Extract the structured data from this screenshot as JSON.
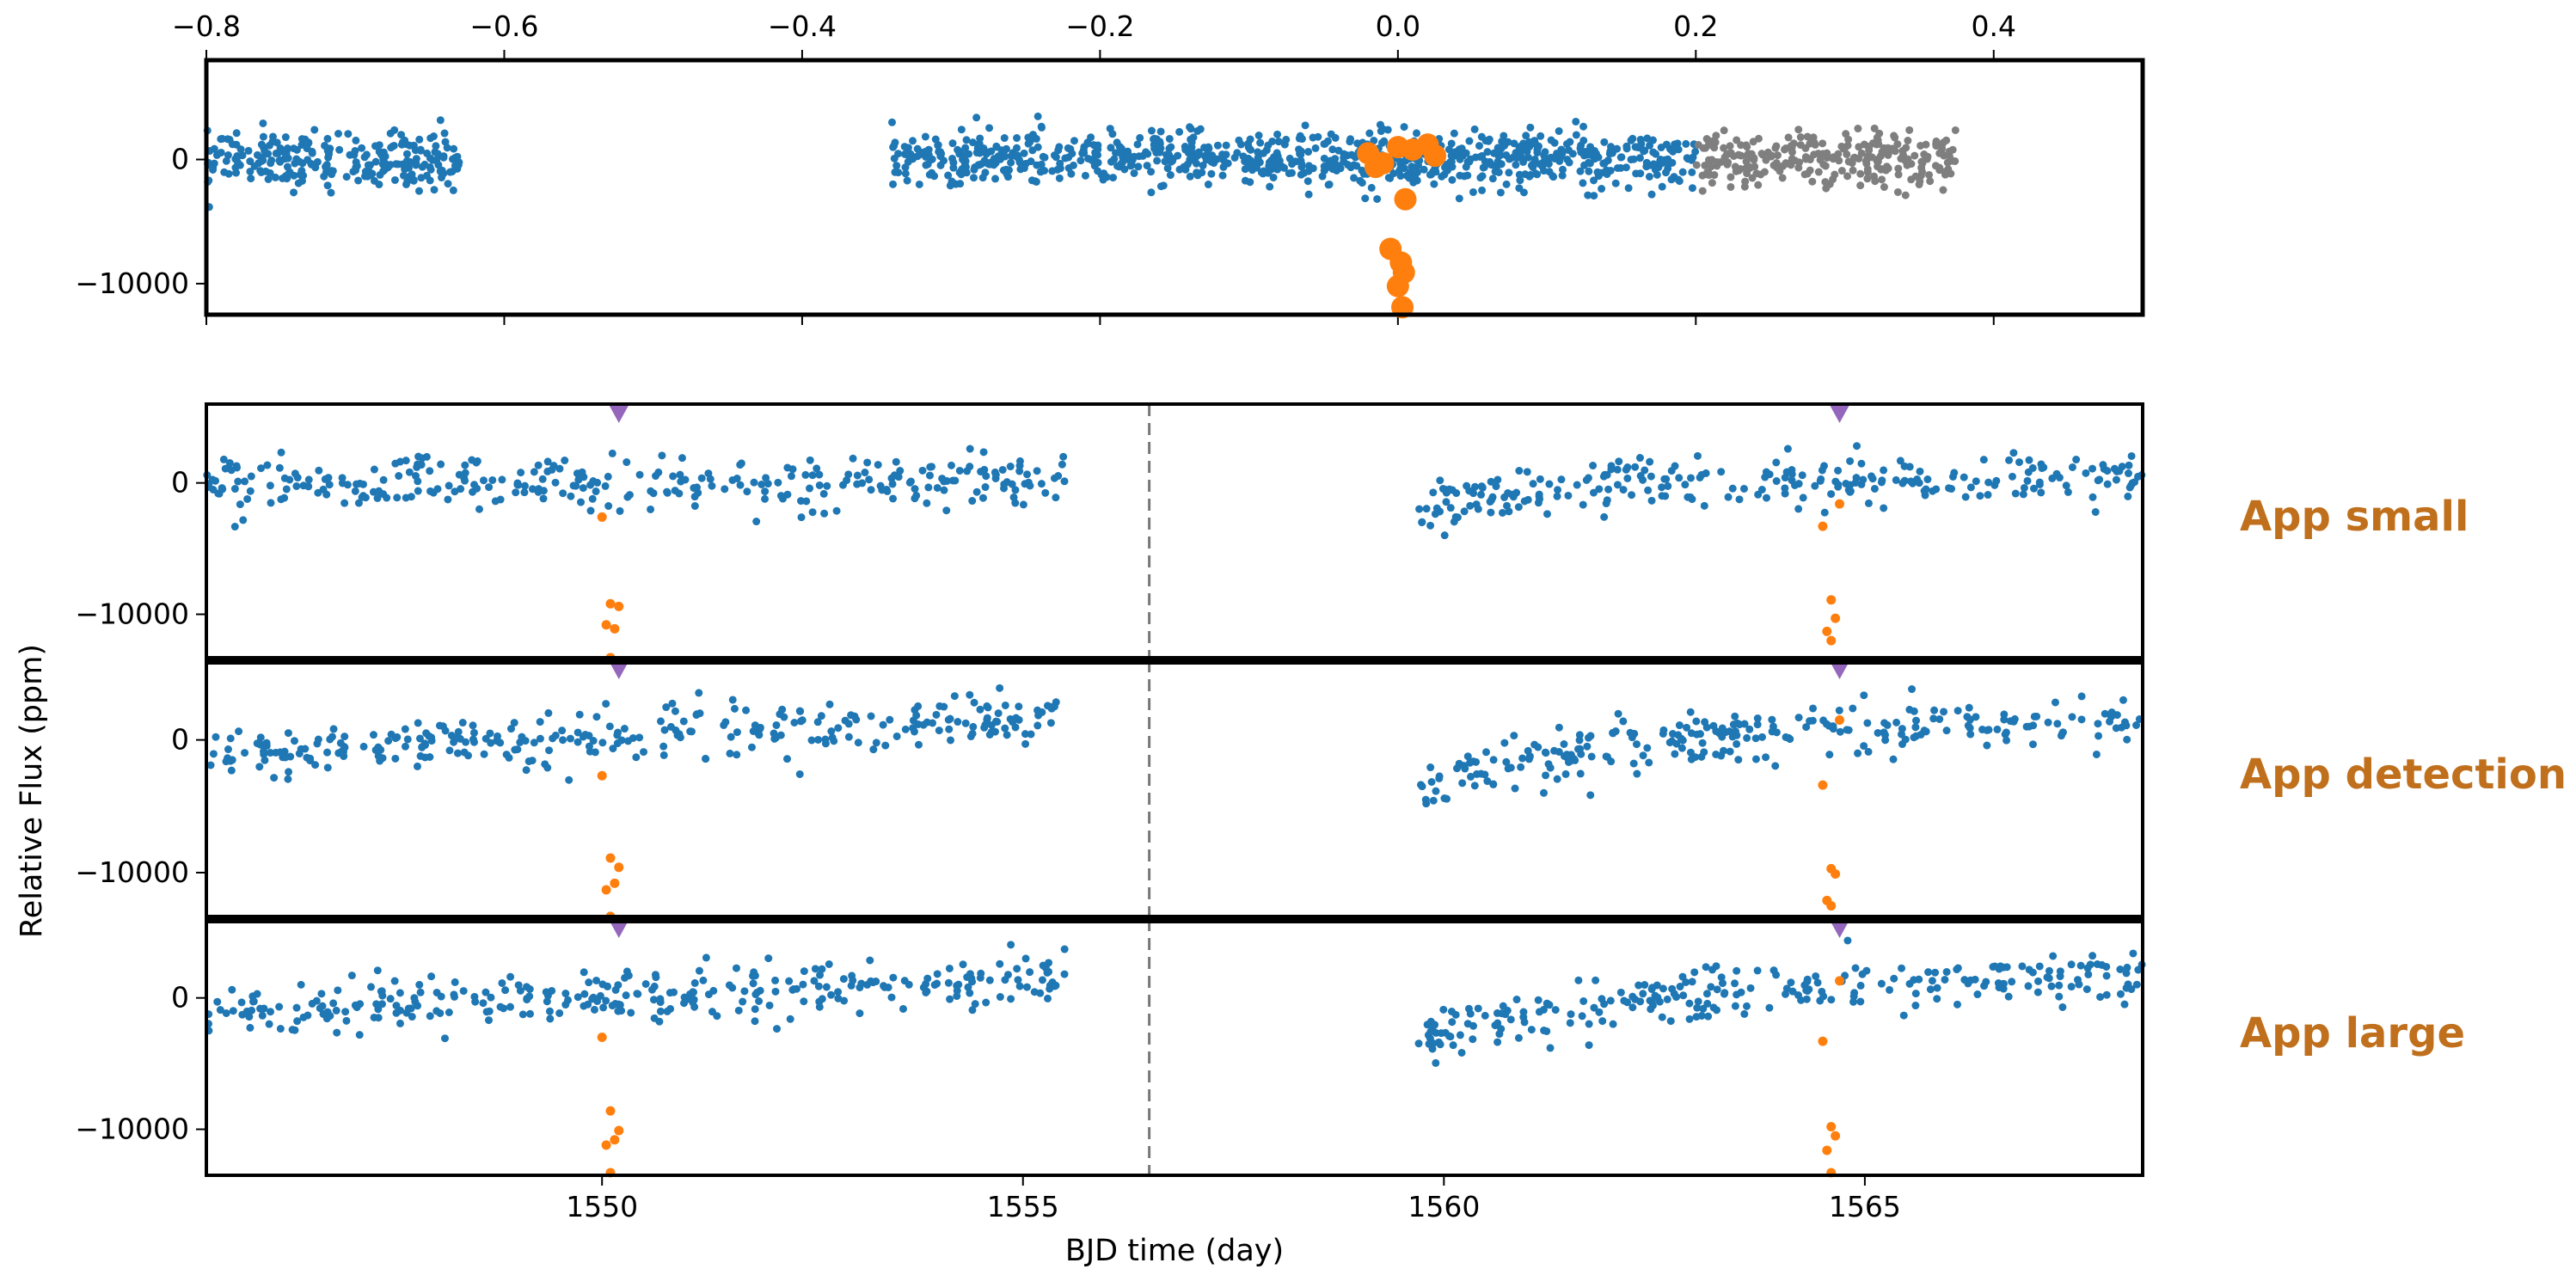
{
  "chart_data": [
    {
      "type": "scatter",
      "panel": "phase-folded",
      "title": "",
      "xlabel": "",
      "ylabel": "",
      "xlim": [
        -0.8,
        0.5
      ],
      "ylim": [
        -12500,
        8000
      ],
      "x_ticks": [
        -0.8,
        -0.6,
        -0.4,
        -0.2,
        0.0,
        0.2,
        0.4
      ],
      "x_tick_labels": [
        "−0.8",
        "−0.6",
        "−0.4",
        "−0.2",
        "0.0",
        "0.2",
        "0.4"
      ],
      "x_ticks_position": "top",
      "y_ticks": [
        0,
        -10000
      ],
      "y_tick_labels": [
        "0",
        "−10000"
      ],
      "series": [
        {
          "color": "#1f77b4",
          "marker": "small dot",
          "x_ranges": [
            [
              -0.8,
              -0.63
            ],
            [
              -0.34,
              0.2
            ]
          ],
          "y_center": 0,
          "y_spread": 1500
        },
        {
          "color": "#7f7f7f",
          "marker": "small dot",
          "x_ranges": [
            [
              0.2,
              0.375
            ]
          ],
          "y_center": 0,
          "y_spread": 1500
        },
        {
          "color": "#ff7f0e",
          "marker": "large dot",
          "points": [
            [
              -0.02,
              500
            ],
            [
              -0.01,
              -300
            ],
            [
              0.0,
              1000
            ],
            [
              0.01,
              800
            ],
            [
              0.02,
              1200
            ],
            [
              0.025,
              300
            ],
            [
              -0.015,
              -600
            ],
            [
              0.005,
              -3200
            ],
            [
              -0.005,
              -7200
            ],
            [
              0.002,
              -8300
            ],
            [
              0.004,
              -9100
            ],
            [
              0.0,
              -10200
            ],
            [
              0.003,
              -11900
            ]
          ]
        }
      ]
    },
    {
      "type": "scatter",
      "panel": "App small",
      "title": "",
      "xlim": [
        1545.3,
        1568.3
      ],
      "ylim": [
        -13500,
        6000
      ],
      "y_ticks": [
        0,
        -10000
      ],
      "y_tick_labels": [
        "0",
        "−10000"
      ],
      "transit_markers_x": [
        1550.2,
        1564.7
      ],
      "gap_line_x": 1556.5,
      "series": [
        {
          "color": "#1f77b4",
          "x_ranges": [
            [
              1545.3,
              1555.5
            ],
            [
              1559.7,
              1568.3
            ]
          ],
          "y_center": 0,
          "trend": "flat"
        },
        {
          "color": "#ff7f0e",
          "points": [
            [
              1550.0,
              -2600
            ],
            [
              1550.1,
              -9200
            ],
            [
              1550.2,
              -9400
            ],
            [
              1550.05,
              -10800
            ],
            [
              1550.15,
              -11100
            ],
            [
              1550.1,
              -13300
            ],
            [
              1564.5,
              -3300
            ],
            [
              1564.7,
              -1600
            ],
            [
              1564.6,
              -8900
            ],
            [
              1564.65,
              -10300
            ],
            [
              1564.55,
              -11300
            ],
            [
              1564.6,
              -12000
            ]
          ]
        }
      ]
    },
    {
      "type": "scatter",
      "panel": "App detection",
      "title": "",
      "xlim": [
        1545.3,
        1568.3
      ],
      "ylim": [
        -13500,
        6000
      ],
      "y_ticks": [
        0,
        -10000
      ],
      "y_tick_labels": [
        "0",
        "−10000"
      ],
      "transit_markers_x": [
        1550.2,
        1564.7
      ],
      "gap_line_x": 1556.5,
      "series": [
        {
          "color": "#1f77b4",
          "x_ranges": [
            [
              1545.3,
              1555.5
            ],
            [
              1559.7,
              1568.3
            ]
          ],
          "y_center": 0,
          "trend": "rising"
        },
        {
          "color": "#ff7f0e",
          "points": [
            [
              1550.0,
              -2700
            ],
            [
              1550.1,
              -8900
            ],
            [
              1550.2,
              -9600
            ],
            [
              1550.15,
              -10800
            ],
            [
              1550.05,
              -11300
            ],
            [
              1550.1,
              -13300
            ],
            [
              1564.5,
              -3400
            ],
            [
              1564.7,
              1500
            ],
            [
              1564.6,
              -9700
            ],
            [
              1564.65,
              -10100
            ],
            [
              1564.55,
              -12100
            ],
            [
              1564.6,
              -12500
            ]
          ]
        }
      ]
    },
    {
      "type": "scatter",
      "panel": "App large",
      "title": "",
      "xlabel": "BJD time (day)",
      "xlim": [
        1545.3,
        1568.3
      ],
      "ylim": [
        -13500,
        6000
      ],
      "x_ticks": [
        1550,
        1555,
        1560,
        1565
      ],
      "x_tick_labels": [
        "1550",
        "1555",
        "1560",
        "1565"
      ],
      "y_ticks": [
        0,
        -10000
      ],
      "y_tick_labels": [
        "0",
        "−10000"
      ],
      "transit_markers_x": [
        1550.2,
        1564.7
      ],
      "gap_line_x": 1556.5,
      "series": [
        {
          "color": "#1f77b4",
          "x_ranges": [
            [
              1545.3,
              1555.5
            ],
            [
              1559.7,
              1568.3
            ]
          ],
          "y_center": 0,
          "trend": "rising"
        },
        {
          "color": "#ff7f0e",
          "points": [
            [
              1550.0,
              -3000
            ],
            [
              1550.1,
              -8600
            ],
            [
              1550.2,
              -10100
            ],
            [
              1550.15,
              -10800
            ],
            [
              1550.05,
              -11200
            ],
            [
              1550.1,
              -13300
            ],
            [
              1564.5,
              -3300
            ],
            [
              1564.7,
              1300
            ],
            [
              1564.6,
              -9800
            ],
            [
              1564.65,
              -10500
            ],
            [
              1564.55,
              -11600
            ],
            [
              1564.6,
              -13300
            ]
          ]
        }
      ]
    }
  ],
  "shared_ylabel": "Relative Flux (ppm)",
  "shared_xlabel": "BJD time (day)",
  "panel_labels": [
    "App small",
    "App detection",
    "App large"
  ],
  "colors": {
    "in_window": "#1f77b4",
    "in_transit": "#ff7f0e",
    "out_window": "#7f7f7f",
    "transit_marker": "#9467bd",
    "label": "#c0701c"
  }
}
